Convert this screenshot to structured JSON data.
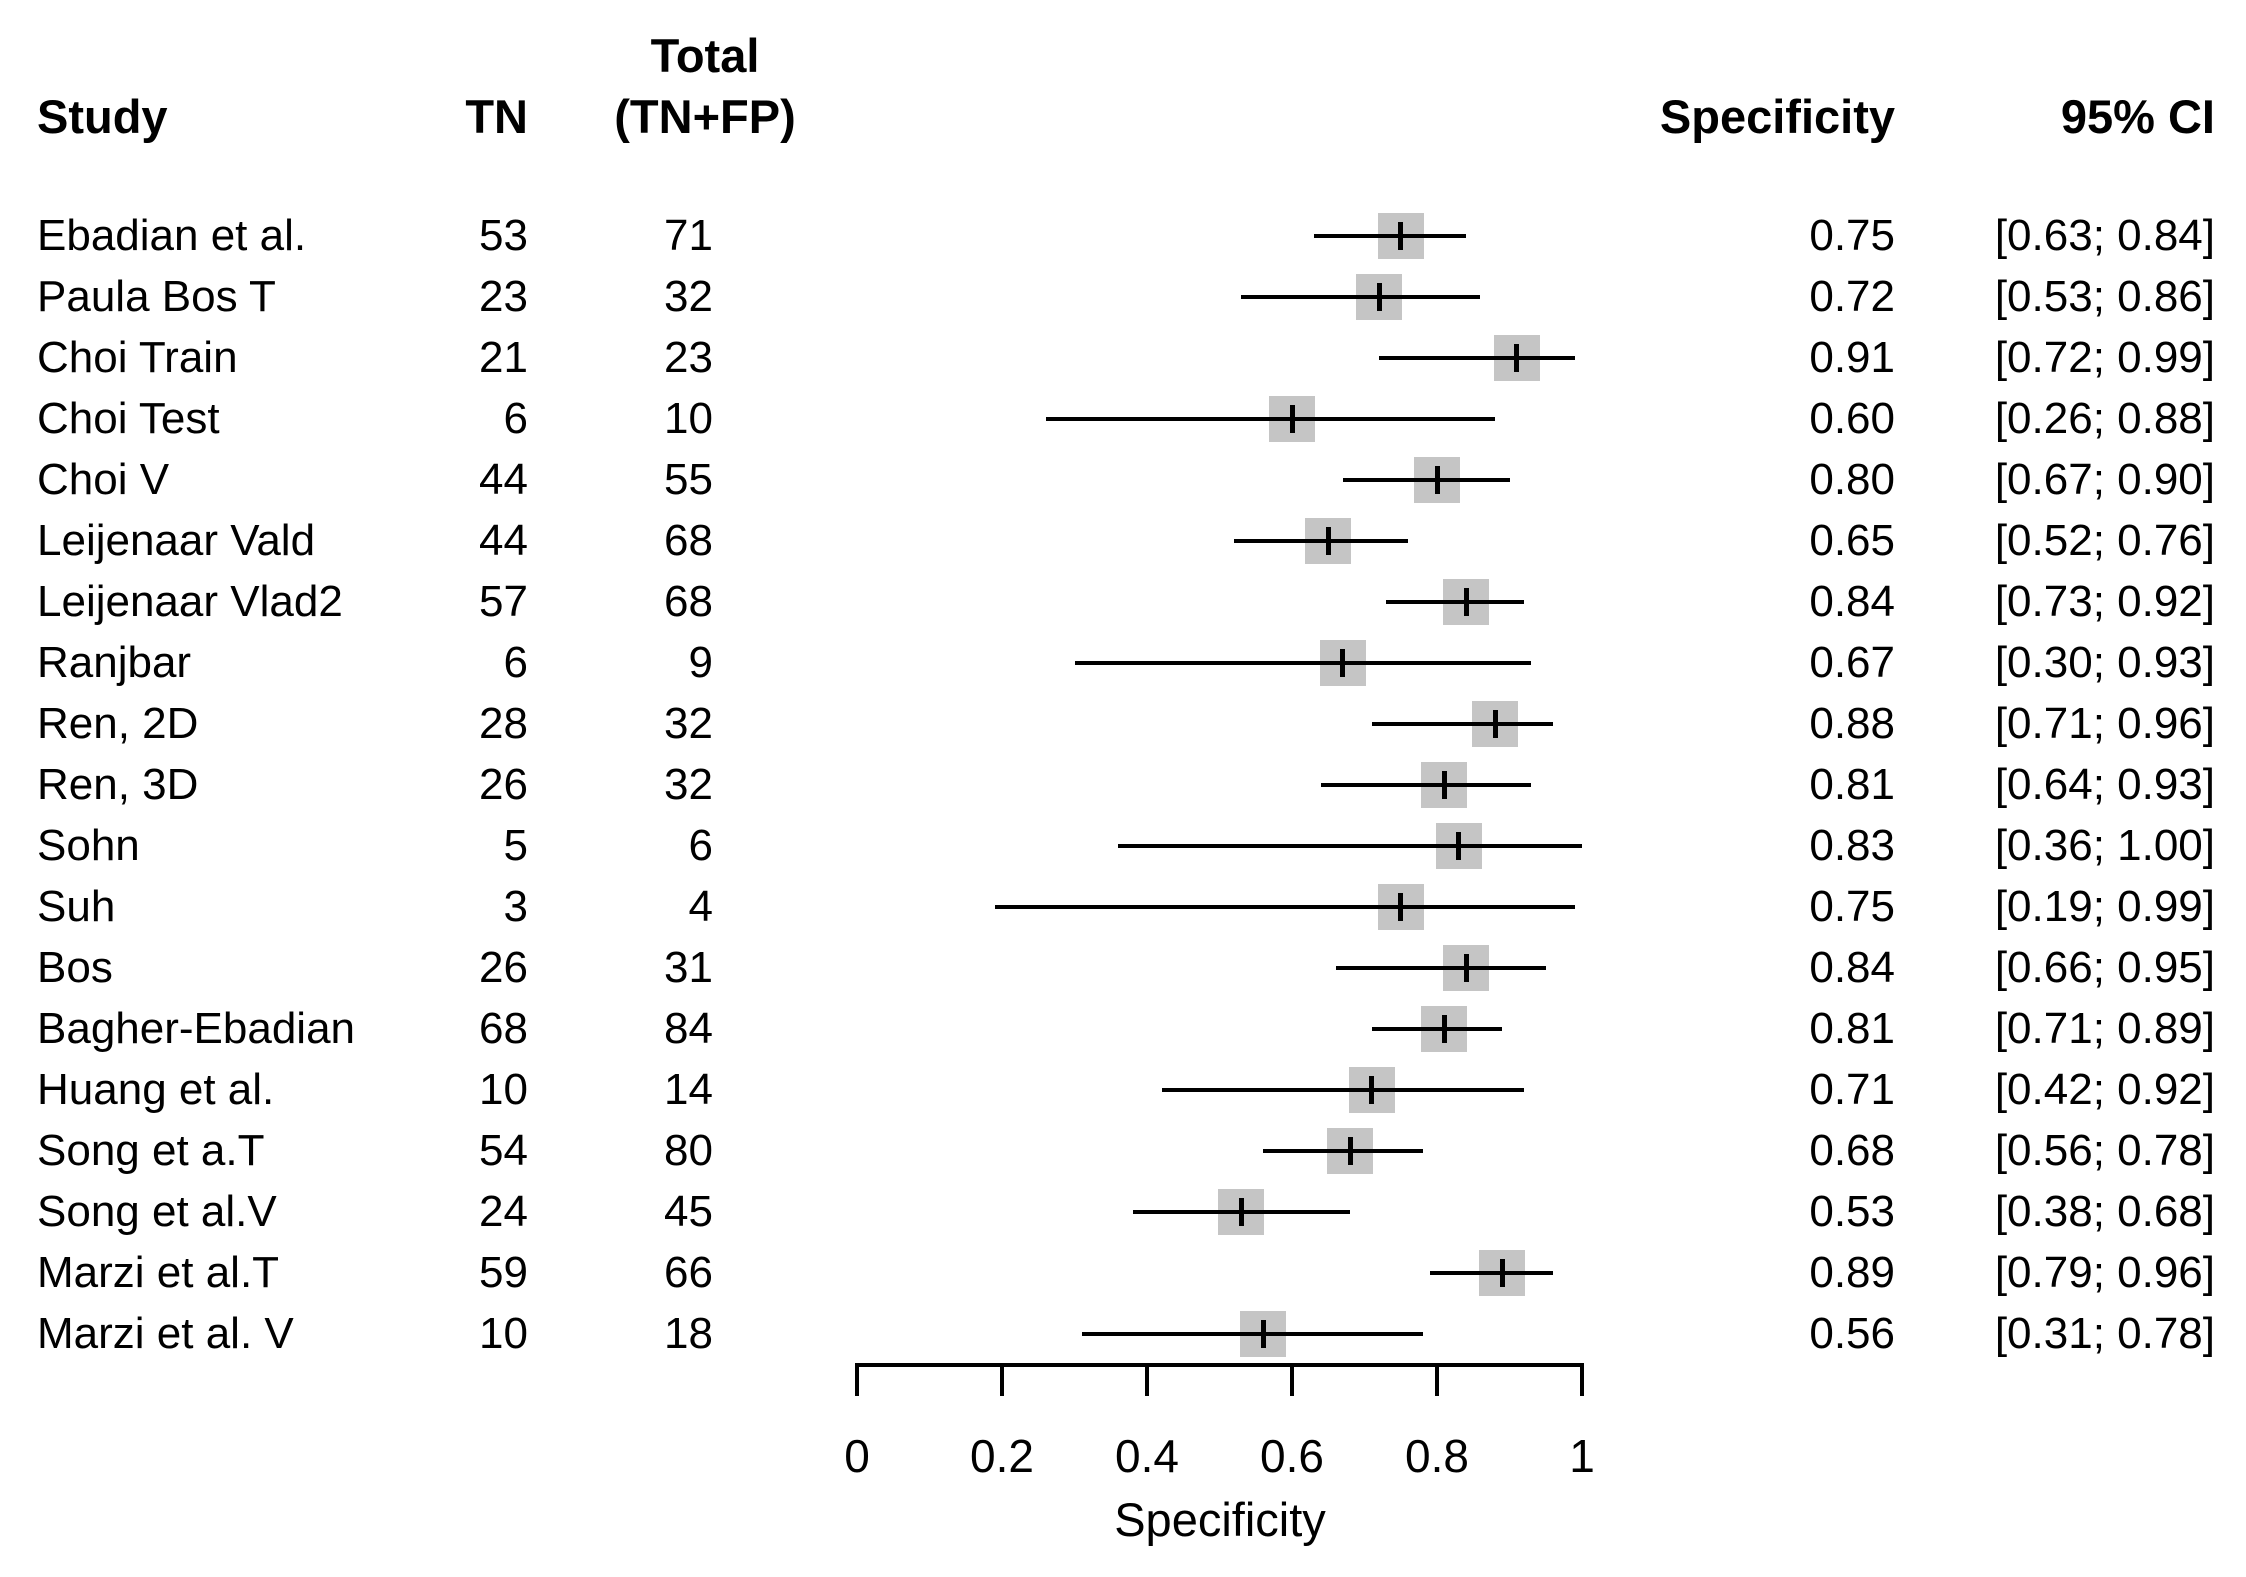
{
  "headers": {
    "study": "Study",
    "tn": "TN",
    "total_line1": "Total",
    "total_line2": "(TN+FP)",
    "specificity": "Specificity",
    "ci": "95% CI"
  },
  "colors": {
    "square": "#c5c5c5",
    "line": "#000000",
    "text": "#000000",
    "background": "#ffffff"
  },
  "chart_data": {
    "type": "forest",
    "xlabel": "Specificity",
    "xlim": [
      0,
      1
    ],
    "x_ticks": [
      "0",
      "0.2",
      "0.4",
      "0.6",
      "0.8",
      "1"
    ],
    "grid": false,
    "studies": [
      {
        "name": "Ebadian et al.",
        "tn": "53",
        "total": "71",
        "spec": 0.75,
        "ci_low": 0.63,
        "ci_high": 0.84,
        "spec_label": "0.75",
        "ci_label": "[0.63; 0.84]"
      },
      {
        "name": "Paula Bos T",
        "tn": "23",
        "total": "32",
        "spec": 0.72,
        "ci_low": 0.53,
        "ci_high": 0.86,
        "spec_label": "0.72",
        "ci_label": "[0.53; 0.86]"
      },
      {
        "name": "Choi Train",
        "tn": "21",
        "total": "23",
        "spec": 0.91,
        "ci_low": 0.72,
        "ci_high": 0.99,
        "spec_label": "0.91",
        "ci_label": "[0.72; 0.99]"
      },
      {
        "name": "Choi Test",
        "tn": "6",
        "total": "10",
        "spec": 0.6,
        "ci_low": 0.26,
        "ci_high": 0.88,
        "spec_label": "0.60",
        "ci_label": "[0.26; 0.88]"
      },
      {
        "name": "Choi V",
        "tn": "44",
        "total": "55",
        "spec": 0.8,
        "ci_low": 0.67,
        "ci_high": 0.9,
        "spec_label": "0.80",
        "ci_label": "[0.67; 0.90]"
      },
      {
        "name": "Leijenaar Vald",
        "tn": "44",
        "total": "68",
        "spec": 0.65,
        "ci_low": 0.52,
        "ci_high": 0.76,
        "spec_label": "0.65",
        "ci_label": "[0.52; 0.76]"
      },
      {
        "name": "Leijenaar Vlad2",
        "tn": "57",
        "total": "68",
        "spec": 0.84,
        "ci_low": 0.73,
        "ci_high": 0.92,
        "spec_label": "0.84",
        "ci_label": "[0.73; 0.92]"
      },
      {
        "name": "Ranjbar",
        "tn": "6",
        "total": "9",
        "spec": 0.67,
        "ci_low": 0.3,
        "ci_high": 0.93,
        "spec_label": "0.67",
        "ci_label": "[0.30; 0.93]"
      },
      {
        "name": "Ren, 2D",
        "tn": "28",
        "total": "32",
        "spec": 0.88,
        "ci_low": 0.71,
        "ci_high": 0.96,
        "spec_label": "0.88",
        "ci_label": "[0.71; 0.96]"
      },
      {
        "name": "Ren, 3D",
        "tn": "26",
        "total": "32",
        "spec": 0.81,
        "ci_low": 0.64,
        "ci_high": 0.93,
        "spec_label": "0.81",
        "ci_label": "[0.64; 0.93]"
      },
      {
        "name": "Sohn",
        "tn": "5",
        "total": "6",
        "spec": 0.83,
        "ci_low": 0.36,
        "ci_high": 1.0,
        "spec_label": "0.83",
        "ci_label": "[0.36; 1.00]"
      },
      {
        "name": "Suh",
        "tn": "3",
        "total": "4",
        "spec": 0.75,
        "ci_low": 0.19,
        "ci_high": 0.99,
        "spec_label": "0.75",
        "ci_label": "[0.19; 0.99]"
      },
      {
        "name": "Bos",
        "tn": "26",
        "total": "31",
        "spec": 0.84,
        "ci_low": 0.66,
        "ci_high": 0.95,
        "spec_label": "0.84",
        "ci_label": "[0.66; 0.95]"
      },
      {
        "name": "Bagher-Ebadian",
        "tn": "68",
        "total": "84",
        "spec": 0.81,
        "ci_low": 0.71,
        "ci_high": 0.89,
        "spec_label": "0.81",
        "ci_label": "[0.71; 0.89]"
      },
      {
        "name": "Huang et al.",
        "tn": "10",
        "total": "14",
        "spec": 0.71,
        "ci_low": 0.42,
        "ci_high": 0.92,
        "spec_label": "0.71",
        "ci_label": "[0.42; 0.92]"
      },
      {
        "name": "Song et a.T",
        "tn": "54",
        "total": "80",
        "spec": 0.68,
        "ci_low": 0.56,
        "ci_high": 0.78,
        "spec_label": "0.68",
        "ci_label": "[0.56; 0.78]"
      },
      {
        "name": "Song et al.V",
        "tn": "24",
        "total": "45",
        "spec": 0.53,
        "ci_low": 0.38,
        "ci_high": 0.68,
        "spec_label": "0.53",
        "ci_label": "[0.38; 0.68]"
      },
      {
        "name": "Marzi et al.T",
        "tn": "59",
        "total": "66",
        "spec": 0.89,
        "ci_low": 0.79,
        "ci_high": 0.96,
        "spec_label": "0.89",
        "ci_label": "[0.79; 0.96]"
      },
      {
        "name": "Marzi et al. V",
        "tn": "10",
        "total": "18",
        "spec": 0.56,
        "ci_low": 0.31,
        "ci_high": 0.78,
        "spec_label": "0.56",
        "ci_label": "[0.31; 0.78]"
      }
    ]
  }
}
